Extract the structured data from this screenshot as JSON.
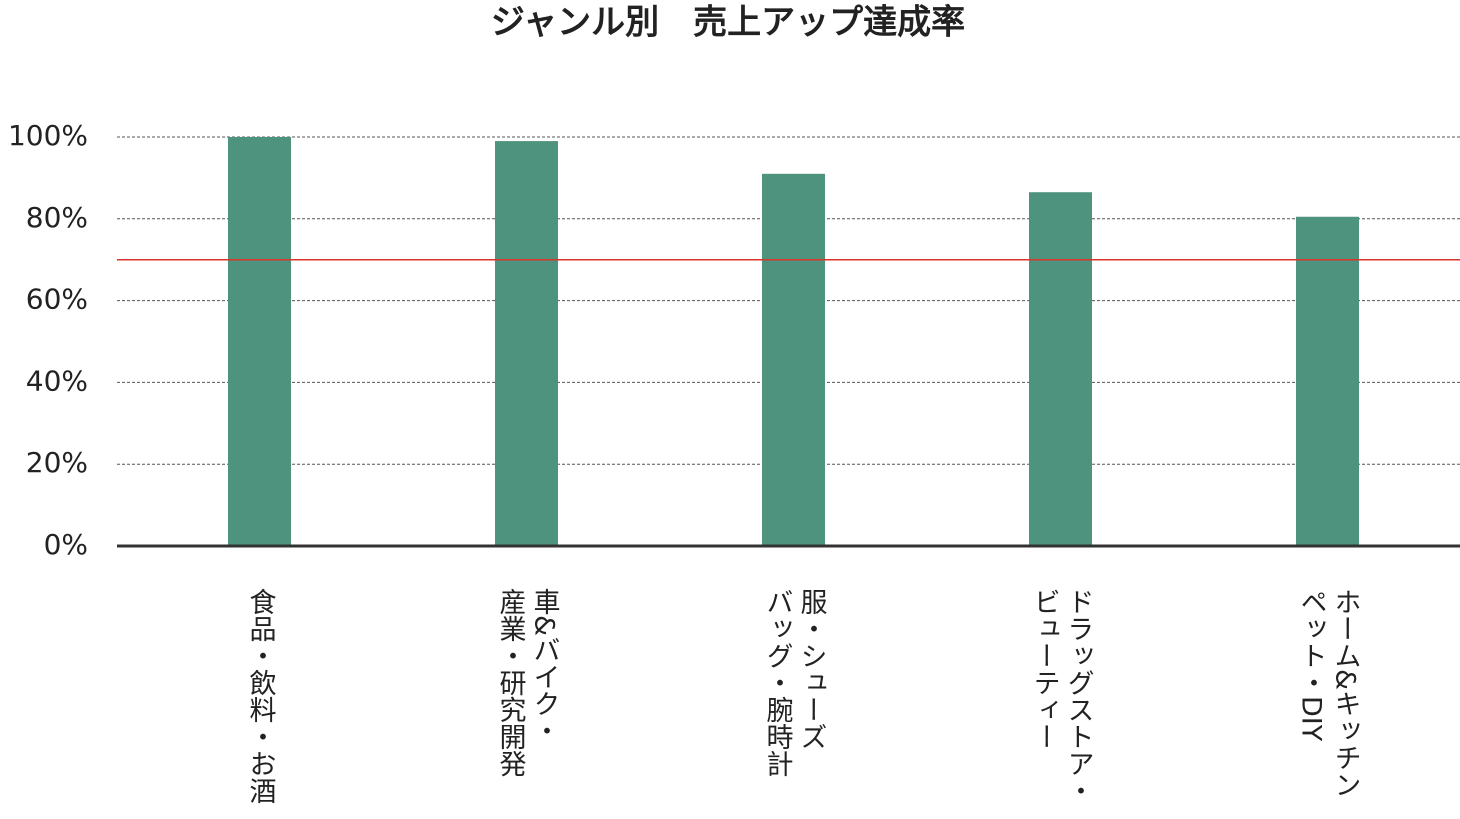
{
  "chart_data": {
    "type": "bar",
    "title": "ジャンル別　売上アップ達成率",
    "categories": [
      "食品・飲料・お酒",
      "車&バイク・\n産業・研究開発",
      "服・シューズ\nバッグ・腕時計",
      "ドラッグストア・\nビューティー",
      "ホーム&キッチン\nペット・DIY"
    ],
    "values": [
      100,
      99,
      91,
      86.5,
      80.5
    ],
    "color": "#4e937e",
    "ylim": [
      0,
      100
    ],
    "yticks": [
      {
        "value": 0,
        "label": "0%"
      },
      {
        "value": 20,
        "label": "20%"
      },
      {
        "value": 40,
        "label": "40%"
      },
      {
        "value": 60,
        "label": "60%"
      },
      {
        "value": 80,
        "label": "80%"
      },
      {
        "value": 100,
        "label": "100%"
      }
    ],
    "grid": true,
    "target_line": {
      "value": 70,
      "color": "#d9352b"
    }
  }
}
